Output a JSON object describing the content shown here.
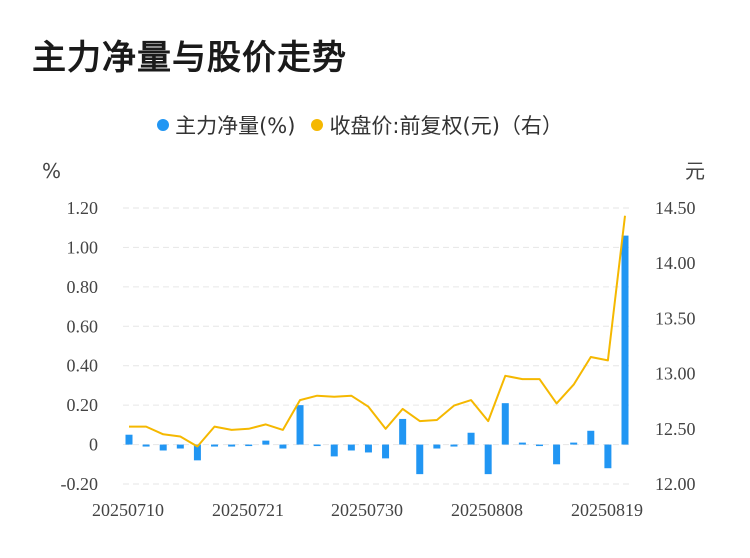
{
  "title": "主力净量与股价走势",
  "legend": {
    "items": [
      {
        "label": "主力净量(%)",
        "color": "#2196f3"
      },
      {
        "label": "收盘价:前复权(元)（右）",
        "color": "#f5b800"
      }
    ]
  },
  "chart_data": {
    "type": "bar+line",
    "title": "主力净量与股价走势",
    "x_tick_labels": [
      "20250710",
      "20250721",
      "20250730",
      "20250808",
      "20250819"
    ],
    "y_left_unit": "%",
    "y_right_unit": "元",
    "y_left_ticks": [
      "1.20",
      "1.00",
      "0.80",
      "0.60",
      "0.40",
      "0.20",
      "0",
      "-0.20"
    ],
    "y_right_ticks": [
      "14.50",
      "14.00",
      "13.50",
      "13.00",
      "12.50",
      "12.00"
    ],
    "y_left_lim": [
      -0.2,
      1.2
    ],
    "y_right_lim": [
      12.0,
      14.5
    ],
    "grid": true,
    "legend_position": "top",
    "series": [
      {
        "name": "主力净量(%)",
        "type": "bar",
        "color": "#2196f3",
        "values": [
          0.05,
          -0.01,
          -0.03,
          -0.02,
          -0.08,
          -0.01,
          -0.01,
          0,
          0.02,
          -0.02,
          0.2,
          0,
          -0.06,
          -0.03,
          -0.04,
          -0.07,
          0.13,
          -0.15,
          -0.02,
          -0.01,
          0.06,
          -0.15,
          0.21,
          0.01,
          0,
          -0.1,
          0.01,
          0.07,
          -0.12,
          1.06
        ]
      },
      {
        "name": "收盘价:前复权(元)（右）",
        "type": "line",
        "color": "#f5b800",
        "values": [
          12.52,
          12.52,
          12.45,
          12.43,
          12.34,
          12.52,
          12.49,
          12.5,
          12.54,
          12.49,
          12.76,
          12.8,
          12.79,
          12.8,
          12.7,
          12.5,
          12.68,
          12.57,
          12.58,
          12.71,
          12.76,
          12.57,
          12.98,
          12.95,
          12.95,
          12.73,
          12.9,
          13.15,
          13.12,
          14.43
        ]
      }
    ]
  }
}
